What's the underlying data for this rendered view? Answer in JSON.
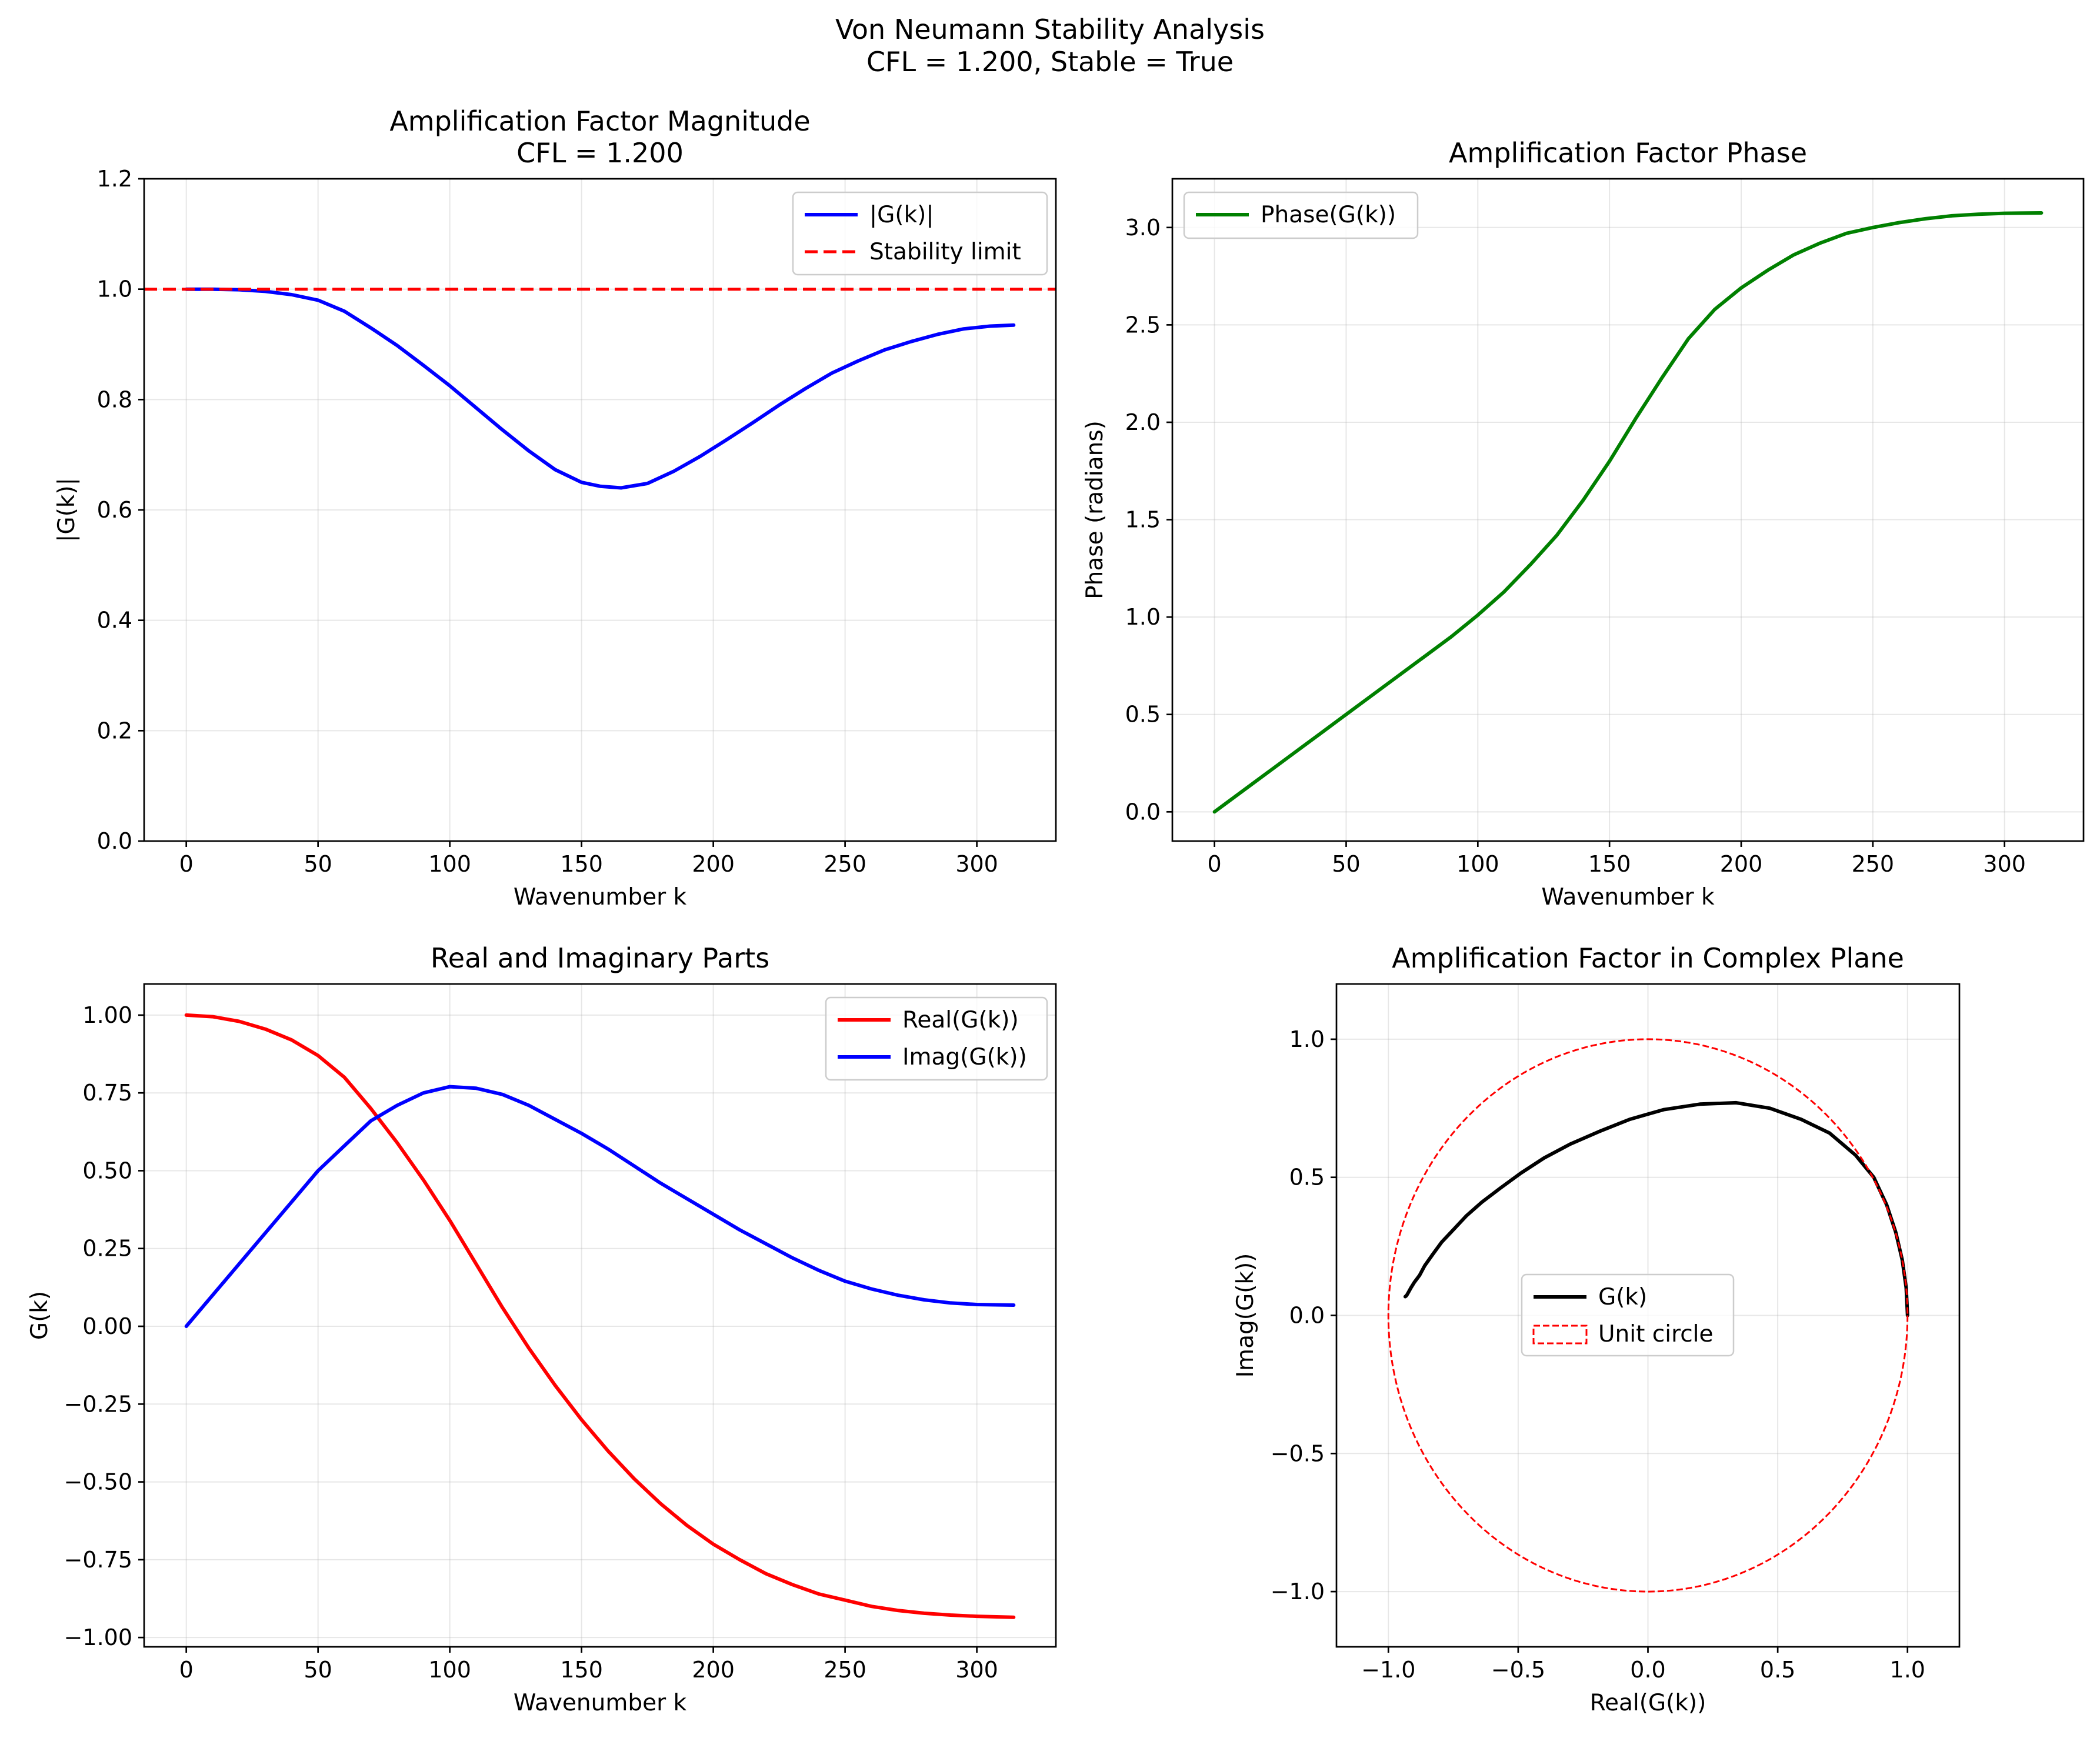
{
  "figure": {
    "title_line1": "Von Neumann Stability Analysis",
    "title_line2": "CFL = 1.200, Stable = True"
  },
  "chart_data": [
    {
      "id": "magnitude",
      "type": "line",
      "title": "Amplification Factor Magnitude",
      "subtitle": "CFL = 1.200",
      "xlabel": "Wavenumber k",
      "ylabel": "|G(k)|",
      "xlim": [
        -16,
        330
      ],
      "ylim": [
        0.0,
        1.2
      ],
      "xticks": [
        0,
        50,
        100,
        150,
        200,
        250,
        300
      ],
      "xtick_labels": [
        "0",
        "50",
        "100",
        "150",
        "200",
        "250",
        "300"
      ],
      "yticks": [
        0.0,
        0.2,
        0.4,
        0.6,
        0.8,
        1.0,
        1.2
      ],
      "ytick_labels": [
        "0.0",
        "0.2",
        "0.4",
        "0.6",
        "0.8",
        "1.0",
        "1.2"
      ],
      "grid": true,
      "legend_position": "upper right",
      "series": [
        {
          "name": "|G(k)|",
          "color": "#0000ff",
          "style": "solid",
          "x": [
            0,
            10,
            20,
            30,
            40,
            50,
            60,
            70,
            80,
            90,
            100,
            110,
            120,
            130,
            140,
            150,
            157,
            165,
            175,
            185,
            195,
            205,
            215,
            225,
            235,
            245,
            255,
            265,
            275,
            285,
            295,
            305,
            314
          ],
          "y": [
            1.0,
            1.0,
            0.999,
            0.996,
            0.99,
            0.98,
            0.96,
            0.93,
            0.898,
            0.862,
            0.825,
            0.785,
            0.745,
            0.707,
            0.673,
            0.65,
            0.643,
            0.64,
            0.648,
            0.67,
            0.697,
            0.727,
            0.758,
            0.79,
            0.82,
            0.848,
            0.87,
            0.89,
            0.905,
            0.918,
            0.928,
            0.933,
            0.935
          ]
        },
        {
          "name": "Stability limit",
          "color": "#ff0000",
          "style": "dashed",
          "x": [
            -16,
            330
          ],
          "y": [
            1.0,
            1.0
          ]
        }
      ]
    },
    {
      "id": "phase",
      "type": "line",
      "title": "Amplification Factor Phase",
      "xlabel": "Wavenumber k",
      "ylabel": "Phase (radians)",
      "xlim": [
        -16,
        330
      ],
      "ylim": [
        -0.15,
        3.25
      ],
      "xticks": [
        0,
        50,
        100,
        150,
        200,
        250,
        300
      ],
      "xtick_labels": [
        "0",
        "50",
        "100",
        "150",
        "200",
        "250",
        "300"
      ],
      "yticks": [
        0.0,
        0.5,
        1.0,
        1.5,
        2.0,
        2.5,
        3.0
      ],
      "ytick_labels": [
        "0.0",
        "0.5",
        "1.0",
        "1.5",
        "2.0",
        "2.5",
        "3.0"
      ],
      "grid": true,
      "legend_position": "upper left",
      "series": [
        {
          "name": "Phase(G(k))",
          "color": "#008000",
          "style": "solid",
          "x": [
            0,
            10,
            20,
            30,
            40,
            50,
            60,
            70,
            80,
            90,
            100,
            110,
            120,
            130,
            140,
            150,
            160,
            170,
            180,
            190,
            200,
            210,
            220,
            230,
            240,
            250,
            260,
            270,
            280,
            290,
            300,
            314
          ],
          "y": [
            0.0,
            0.1,
            0.2,
            0.3,
            0.4,
            0.5,
            0.6,
            0.7,
            0.8,
            0.9,
            1.01,
            1.13,
            1.27,
            1.42,
            1.6,
            1.8,
            2.02,
            2.23,
            2.43,
            2.58,
            2.69,
            2.78,
            2.86,
            2.92,
            2.97,
            3.0,
            3.025,
            3.045,
            3.06,
            3.068,
            3.073,
            3.075
          ]
        }
      ]
    },
    {
      "id": "real_imag",
      "type": "line",
      "title": "Real and Imaginary Parts",
      "xlabel": "Wavenumber k",
      "ylabel": "G(k)",
      "xlim": [
        -16,
        330
      ],
      "ylim": [
        -1.03,
        1.1
      ],
      "xticks": [
        0,
        50,
        100,
        150,
        200,
        250,
        300
      ],
      "xtick_labels": [
        "0",
        "50",
        "100",
        "150",
        "200",
        "250",
        "300"
      ],
      "yticks": [
        -1.0,
        -0.75,
        -0.5,
        -0.25,
        0.0,
        0.25,
        0.5,
        0.75,
        1.0
      ],
      "ytick_labels": [
        "−1.00",
        "−0.75",
        "−0.50",
        "−0.25",
        "0.00",
        "0.25",
        "0.50",
        "0.75",
        "1.00"
      ],
      "grid": true,
      "legend_position": "upper right",
      "series": [
        {
          "name": "Real(G(k))",
          "color": "#ff0000",
          "style": "solid",
          "x": [
            0,
            10,
            20,
            30,
            40,
            50,
            60,
            70,
            80,
            90,
            100,
            110,
            120,
            130,
            140,
            150,
            160,
            170,
            180,
            190,
            200,
            210,
            220,
            230,
            240,
            250,
            260,
            270,
            280,
            290,
            300,
            314
          ],
          "y": [
            1.0,
            0.995,
            0.98,
            0.955,
            0.92,
            0.87,
            0.8,
            0.7,
            0.59,
            0.47,
            0.34,
            0.2,
            0.06,
            -0.07,
            -0.19,
            -0.3,
            -0.4,
            -0.49,
            -0.57,
            -0.64,
            -0.7,
            -0.75,
            -0.795,
            -0.83,
            -0.86,
            -0.88,
            -0.9,
            -0.913,
            -0.922,
            -0.928,
            -0.932,
            -0.935
          ]
        },
        {
          "name": "Imag(G(k))",
          "color": "#0000ff",
          "style": "solid",
          "x": [
            0,
            10,
            20,
            30,
            40,
            50,
            60,
            70,
            80,
            90,
            100,
            110,
            120,
            130,
            140,
            150,
            160,
            170,
            180,
            190,
            200,
            210,
            220,
            230,
            240,
            250,
            260,
            270,
            280,
            290,
            300,
            314
          ],
          "y": [
            0.0,
            0.1,
            0.2,
            0.3,
            0.4,
            0.5,
            0.58,
            0.66,
            0.71,
            0.75,
            0.77,
            0.765,
            0.745,
            0.71,
            0.665,
            0.62,
            0.57,
            0.515,
            0.46,
            0.41,
            0.36,
            0.31,
            0.265,
            0.22,
            0.18,
            0.145,
            0.12,
            0.1,
            0.085,
            0.075,
            0.07,
            0.068
          ]
        }
      ]
    },
    {
      "id": "complex_plane",
      "type": "line",
      "title": "Amplification Factor in Complex Plane",
      "xlabel": "Real(G(k))",
      "ylabel": "Imag(G(k))",
      "xlim": [
        -1.2,
        1.2
      ],
      "ylim": [
        -1.2,
        1.2
      ],
      "xticks": [
        -1.0,
        -0.5,
        0.0,
        0.5,
        1.0
      ],
      "xtick_labels": [
        "−1.0",
        "−0.5",
        "0.0",
        "0.5",
        "1.0"
      ],
      "yticks": [
        -1.0,
        -0.5,
        0.0,
        0.5,
        1.0
      ],
      "ytick_labels": [
        "−1.0",
        "−0.5",
        "0.0",
        "0.5",
        "1.0"
      ],
      "grid": true,
      "legend_position": "center",
      "series": [
        {
          "name": "G(k)",
          "color": "#000000",
          "style": "solid",
          "x": [
            1.0,
            0.995,
            0.98,
            0.955,
            0.92,
            0.87,
            0.8,
            0.7,
            0.59,
            0.47,
            0.34,
            0.2,
            0.06,
            -0.07,
            -0.19,
            -0.3,
            -0.4,
            -0.49,
            -0.57,
            -0.64,
            -0.7,
            -0.75,
            -0.795,
            -0.83,
            -0.86,
            -0.88,
            -0.9,
            -0.913,
            -0.922,
            -0.928,
            -0.932,
            -0.935
          ],
          "y": [
            0.0,
            0.1,
            0.2,
            0.3,
            0.4,
            0.5,
            0.58,
            0.66,
            0.71,
            0.75,
            0.77,
            0.765,
            0.745,
            0.71,
            0.665,
            0.62,
            0.57,
            0.515,
            0.46,
            0.41,
            0.36,
            0.31,
            0.265,
            0.22,
            0.18,
            0.145,
            0.12,
            0.1,
            0.085,
            0.075,
            0.07,
            0.068
          ]
        },
        {
          "name": "Unit circle",
          "color": "#ff0000",
          "style": "dashed-circle",
          "center": [
            0,
            0
          ],
          "radius": 1.0
        }
      ]
    }
  ]
}
